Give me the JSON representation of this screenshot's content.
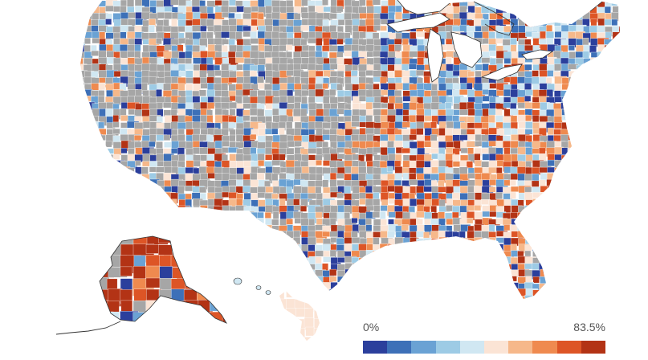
{
  "legend": {
    "min_label": "0%",
    "max_label": "83.5%",
    "colors": [
      "#2b3f9c",
      "#3d70b8",
      "#6aa2d4",
      "#9dcbe5",
      "#d0e7f2",
      "#fbe4d5",
      "#f6b88a",
      "#ef8a4f",
      "#dd5526",
      "#b33315"
    ]
  },
  "map": {
    "no_data_color": "#a6a6a6",
    "border_color": "#ffffff",
    "water_outline_color": "#333333",
    "regions": [
      "contiguous-us",
      "alaska",
      "hawaii"
    ]
  }
}
